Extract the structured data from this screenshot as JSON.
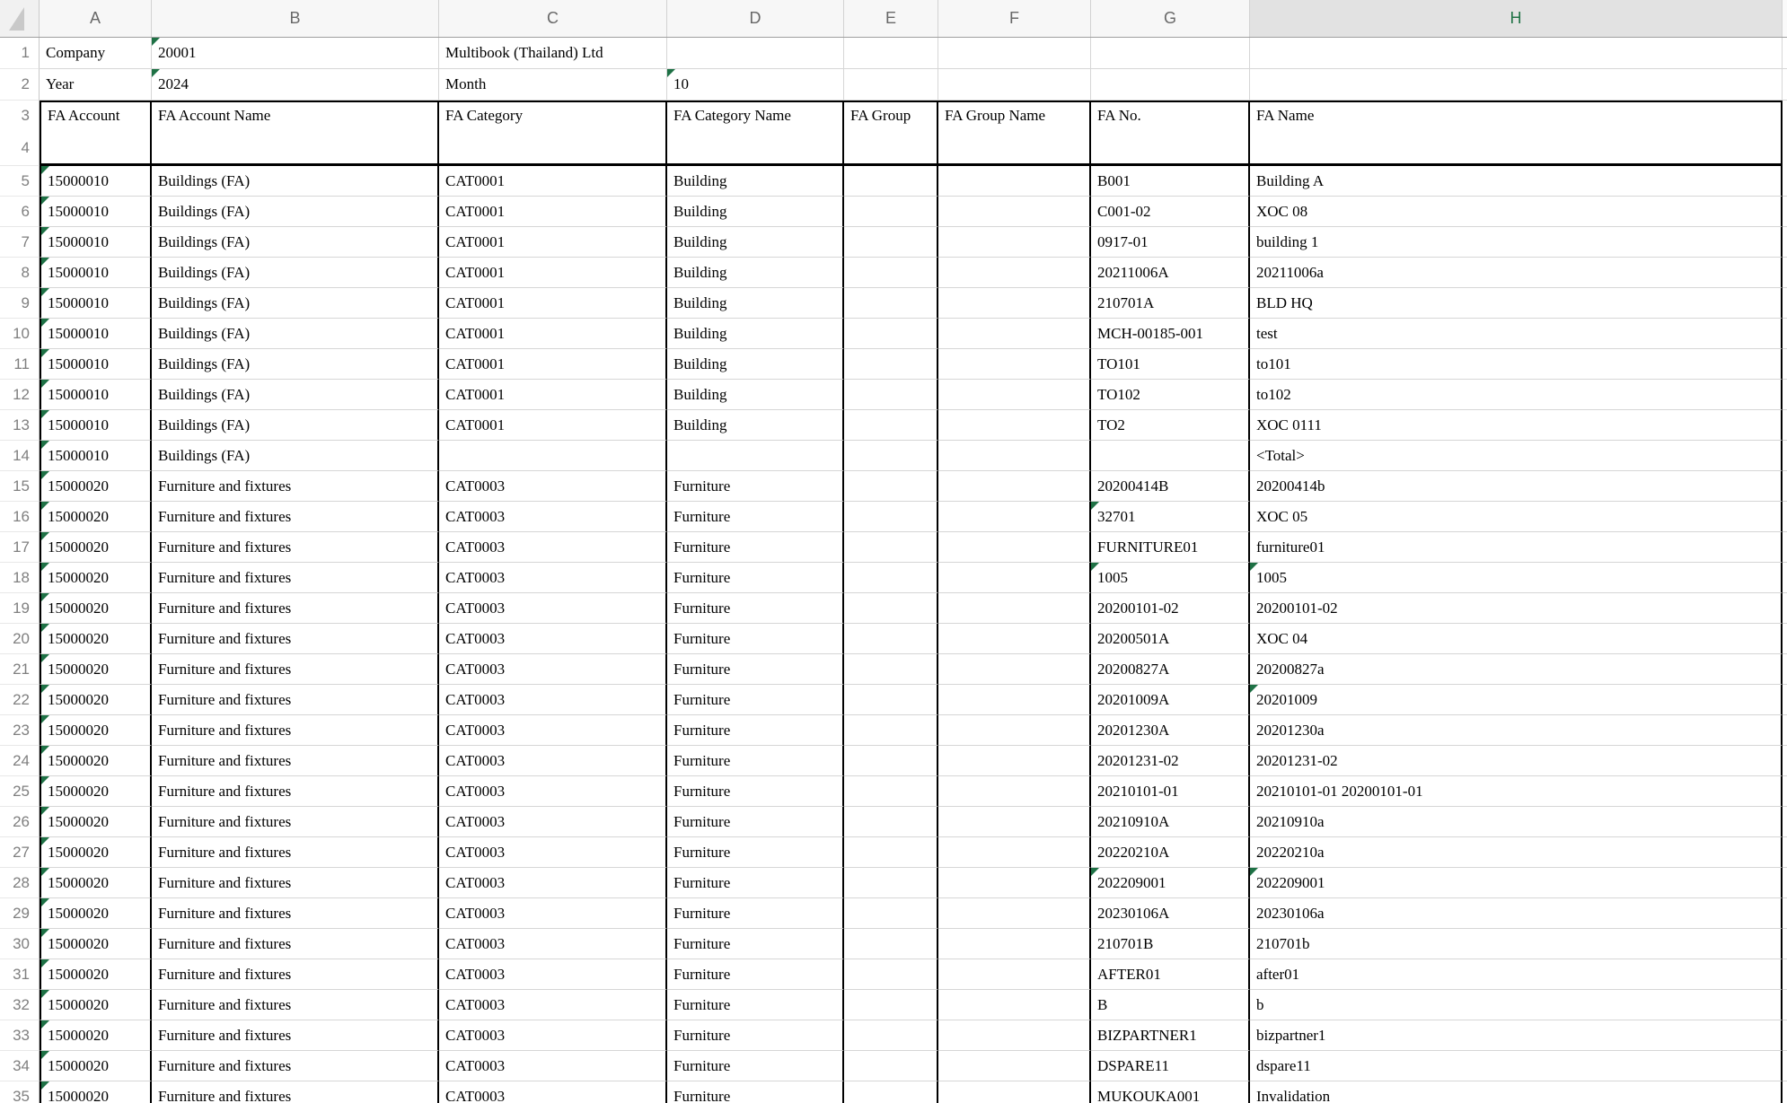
{
  "colors": {
    "accent_green": "#217346",
    "flag_green": "#1e7145",
    "grid_line": "#d6d6d6",
    "table_border": "#000000",
    "header_strip_bg": "#f5f5f5",
    "selected_header_bg": "#e2e2e2",
    "gutter_text": "#7f7f7f"
  },
  "sheet": {
    "columns": [
      "A",
      "B",
      "C",
      "D",
      "E",
      "F",
      "G",
      "H"
    ],
    "selected_column": "H",
    "corner_icon": "select-all-triangle",
    "info_rows": [
      {
        "n": "1",
        "a": "Company",
        "b": "20001",
        "c": "Multibook (Thailand) Ltd",
        "d": "",
        "e": "",
        "f": "",
        "g": "",
        "h": "",
        "flags": {
          "b": true
        }
      },
      {
        "n": "2",
        "a": "Year",
        "b": "2024",
        "c": "Month",
        "d": "10",
        "e": "",
        "f": "",
        "g": "",
        "h": "",
        "flags": {
          "b": true,
          "d": true
        }
      }
    ],
    "header": {
      "row_numbers": [
        "3",
        "4"
      ],
      "cells": {
        "a": "FA Account",
        "b": "FA Account Name",
        "c": "FA Category",
        "d": "FA Category Name",
        "e": "FA Group",
        "f": "FA Group Name",
        "g": "FA No.",
        "h": "FA Name"
      }
    },
    "rows": [
      {
        "n": "5",
        "a": "15000010",
        "b": "Buildings (FA)",
        "c": "CAT0001",
        "d": "Building",
        "e": "",
        "f": "",
        "g": "B001",
        "h": "Building A",
        "flags": {
          "a": true
        }
      },
      {
        "n": "6",
        "a": "15000010",
        "b": "Buildings (FA)",
        "c": "CAT0001",
        "d": "Building",
        "e": "",
        "f": "",
        "g": "C001-02",
        "h": "XOC 08",
        "flags": {
          "a": true
        }
      },
      {
        "n": "7",
        "a": "15000010",
        "b": "Buildings (FA)",
        "c": "CAT0001",
        "d": "Building",
        "e": "",
        "f": "",
        "g": "0917-01",
        "h": "building 1",
        "flags": {
          "a": true
        }
      },
      {
        "n": "8",
        "a": "15000010",
        "b": "Buildings (FA)",
        "c": "CAT0001",
        "d": "Building",
        "e": "",
        "f": "",
        "g": "20211006A",
        "h": "20211006a",
        "flags": {
          "a": true
        }
      },
      {
        "n": "9",
        "a": "15000010",
        "b": "Buildings (FA)",
        "c": "CAT0001",
        "d": "Building",
        "e": "",
        "f": "",
        "g": "210701A",
        "h": "BLD HQ",
        "flags": {
          "a": true
        }
      },
      {
        "n": "10",
        "a": "15000010",
        "b": "Buildings (FA)",
        "c": "CAT0001",
        "d": "Building",
        "e": "",
        "f": "",
        "g": "MCH-00185-001",
        "h": "test",
        "flags": {
          "a": true
        }
      },
      {
        "n": "11",
        "a": "15000010",
        "b": "Buildings (FA)",
        "c": "CAT0001",
        "d": "Building",
        "e": "",
        "f": "",
        "g": "TO101",
        "h": "to101",
        "flags": {
          "a": true
        }
      },
      {
        "n": "12",
        "a": "15000010",
        "b": "Buildings (FA)",
        "c": "CAT0001",
        "d": "Building",
        "e": "",
        "f": "",
        "g": "TO102",
        "h": "to102",
        "flags": {
          "a": true
        }
      },
      {
        "n": "13",
        "a": "15000010",
        "b": "Buildings (FA)",
        "c": "CAT0001",
        "d": "Building",
        "e": "",
        "f": "",
        "g": "TO2",
        "h": "XOC 0111",
        "flags": {
          "a": true
        }
      },
      {
        "n": "14",
        "a": "15000010",
        "b": "Buildings (FA)",
        "c": "",
        "d": "",
        "e": "",
        "f": "",
        "g": "",
        "h": "<Total>",
        "flags": {
          "a": true
        }
      },
      {
        "n": "15",
        "a": "15000020",
        "b": "Furniture and fixtures",
        "c": "CAT0003",
        "d": "Furniture",
        "e": "",
        "f": "",
        "g": "20200414B",
        "h": "20200414b",
        "flags": {
          "a": true
        }
      },
      {
        "n": "16",
        "a": "15000020",
        "b": "Furniture and fixtures",
        "c": "CAT0003",
        "d": "Furniture",
        "e": "",
        "f": "",
        "g": "32701",
        "h": "XOC 05",
        "flags": {
          "a": true,
          "g": true
        }
      },
      {
        "n": "17",
        "a": "15000020",
        "b": "Furniture and fixtures",
        "c": "CAT0003",
        "d": "Furniture",
        "e": "",
        "f": "",
        "g": "FURNITURE01",
        "h": "furniture01",
        "flags": {
          "a": true
        }
      },
      {
        "n": "18",
        "a": "15000020",
        "b": "Furniture and fixtures",
        "c": "CAT0003",
        "d": "Furniture",
        "e": "",
        "f": "",
        "g": "1005",
        "h": "1005",
        "flags": {
          "a": true,
          "g": true,
          "h": true
        }
      },
      {
        "n": "19",
        "a": "15000020",
        "b": "Furniture and fixtures",
        "c": "CAT0003",
        "d": "Furniture",
        "e": "",
        "f": "",
        "g": "20200101-02",
        "h": "20200101-02",
        "flags": {
          "a": true
        }
      },
      {
        "n": "20",
        "a": "15000020",
        "b": "Furniture and fixtures",
        "c": "CAT0003",
        "d": "Furniture",
        "e": "",
        "f": "",
        "g": "20200501A",
        "h": "XOC 04",
        "flags": {
          "a": true
        }
      },
      {
        "n": "21",
        "a": "15000020",
        "b": "Furniture and fixtures",
        "c": "CAT0003",
        "d": "Furniture",
        "e": "",
        "f": "",
        "g": "20200827A",
        "h": "20200827a",
        "flags": {
          "a": true
        }
      },
      {
        "n": "22",
        "a": "15000020",
        "b": "Furniture and fixtures",
        "c": "CAT0003",
        "d": "Furniture",
        "e": "",
        "f": "",
        "g": "20201009A",
        "h": "20201009",
        "flags": {
          "a": true,
          "h": true
        }
      },
      {
        "n": "23",
        "a": "15000020",
        "b": "Furniture and fixtures",
        "c": "CAT0003",
        "d": "Furniture",
        "e": "",
        "f": "",
        "g": "20201230A",
        "h": "20201230a",
        "flags": {
          "a": true
        }
      },
      {
        "n": "24",
        "a": "15000020",
        "b": "Furniture and fixtures",
        "c": "CAT0003",
        "d": "Furniture",
        "e": "",
        "f": "",
        "g": "20201231-02",
        "h": "20201231-02",
        "flags": {
          "a": true
        }
      },
      {
        "n": "25",
        "a": "15000020",
        "b": "Furniture and fixtures",
        "c": "CAT0003",
        "d": "Furniture",
        "e": "",
        "f": "",
        "g": "20210101-01",
        "h": "20210101-01 20200101-01",
        "flags": {
          "a": true
        }
      },
      {
        "n": "26",
        "a": "15000020",
        "b": "Furniture and fixtures",
        "c": "CAT0003",
        "d": "Furniture",
        "e": "",
        "f": "",
        "g": "20210910A",
        "h": "20210910a",
        "flags": {
          "a": true
        }
      },
      {
        "n": "27",
        "a": "15000020",
        "b": "Furniture and fixtures",
        "c": "CAT0003",
        "d": "Furniture",
        "e": "",
        "f": "",
        "g": "20220210A",
        "h": "20220210a",
        "flags": {
          "a": true
        }
      },
      {
        "n": "28",
        "a": "15000020",
        "b": "Furniture and fixtures",
        "c": "CAT0003",
        "d": "Furniture",
        "e": "",
        "f": "",
        "g": "202209001",
        "h": "202209001",
        "flags": {
          "a": true,
          "g": true,
          "h": true
        }
      },
      {
        "n": "29",
        "a": "15000020",
        "b": "Furniture and fixtures",
        "c": "CAT0003",
        "d": "Furniture",
        "e": "",
        "f": "",
        "g": "20230106A",
        "h": "20230106a",
        "flags": {
          "a": true
        }
      },
      {
        "n": "30",
        "a": "15000020",
        "b": "Furniture and fixtures",
        "c": "CAT0003",
        "d": "Furniture",
        "e": "",
        "f": "",
        "g": "210701B",
        "h": "210701b",
        "flags": {
          "a": true
        }
      },
      {
        "n": "31",
        "a": "15000020",
        "b": "Furniture and fixtures",
        "c": "CAT0003",
        "d": "Furniture",
        "e": "",
        "f": "",
        "g": "AFTER01",
        "h": "after01",
        "flags": {
          "a": true
        }
      },
      {
        "n": "32",
        "a": "15000020",
        "b": "Furniture and fixtures",
        "c": "CAT0003",
        "d": "Furniture",
        "e": "",
        "f": "",
        "g": "B",
        "h": "b",
        "flags": {
          "a": true
        }
      },
      {
        "n": "33",
        "a": "15000020",
        "b": "Furniture and fixtures",
        "c": "CAT0003",
        "d": "Furniture",
        "e": "",
        "f": "",
        "g": "BIZPARTNER1",
        "h": "bizpartner1",
        "flags": {
          "a": true
        }
      },
      {
        "n": "34",
        "a": "15000020",
        "b": "Furniture and fixtures",
        "c": "CAT0003",
        "d": "Furniture",
        "e": "",
        "f": "",
        "g": "DSPARE11",
        "h": "dspare11",
        "flags": {
          "a": true
        }
      },
      {
        "n": "35",
        "a": "15000020",
        "b": "Furniture and fixtures",
        "c": "CAT0003",
        "d": "Furniture",
        "e": "",
        "f": "",
        "g": "MUKOUKA001",
        "h": "Invalidation",
        "flags": {
          "a": true
        }
      }
    ]
  }
}
